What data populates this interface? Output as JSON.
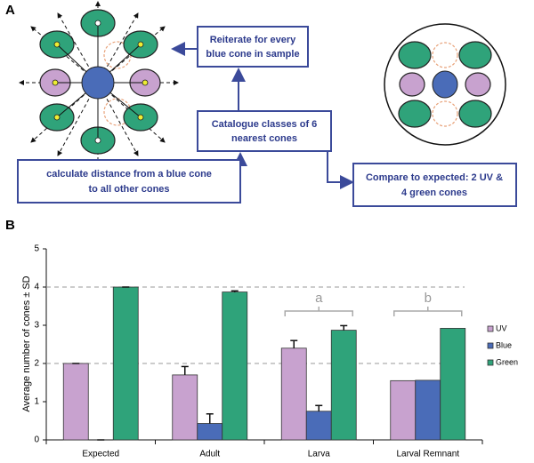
{
  "panel_a": {
    "label": "A",
    "boxes": [
      {
        "lines": [
          "Reiterate for every",
          "blue cone in sample"
        ]
      },
      {
        "lines": [
          "Catalogue classes of 6",
          "nearest cones"
        ]
      },
      {
        "lines": [
          "calculate distance from a blue cone",
          "to all other cones"
        ]
      },
      {
        "lines": [
          "Compare to expected: 2 UV &",
          "4 green cones"
        ]
      }
    ]
  },
  "chart_data": {
    "type": "bar",
    "panel_label": "B",
    "ylabel": "Average number of cones ± SD",
    "categories": [
      "Expected",
      "Adult",
      "Larva",
      "Larval Remnant"
    ],
    "series": [
      {
        "name": "UV",
        "color": "#c8a2cf",
        "values": [
          2,
          1.7,
          2.4,
          1.55
        ],
        "errors": [
          0,
          0.22,
          0.2,
          null
        ]
      },
      {
        "name": "Blue",
        "color": "#4a6cb8",
        "values": [
          0,
          0.43,
          0.75,
          1.56
        ],
        "errors": [
          0,
          0.25,
          0.15,
          null
        ]
      },
      {
        "name": "Green",
        "color": "#2fa37a",
        "values": [
          4,
          3.87,
          2.87,
          2.92
        ],
        "errors": [
          0,
          0.03,
          0.12,
          null
        ]
      }
    ],
    "ylim": [
      0,
      5
    ],
    "yticks": [
      0,
      1,
      2,
      3,
      4,
      5
    ],
    "reference_lines": [
      2,
      4
    ],
    "bracket_labels": [
      "a",
      "b"
    ],
    "legend": "right"
  }
}
